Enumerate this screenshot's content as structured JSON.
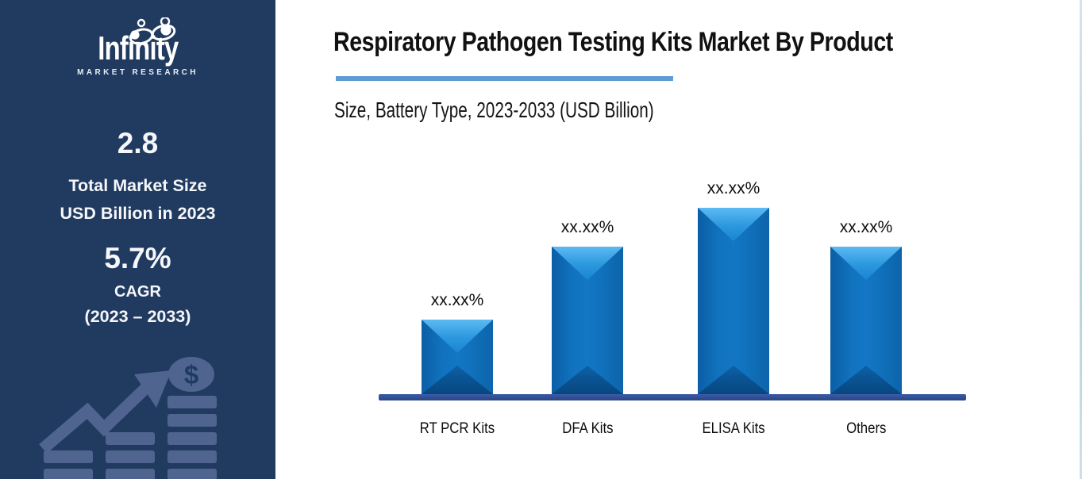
{
  "sidebar": {
    "logo": {
      "brand": "Infinity",
      "tagline": "MARKET RESEARCH"
    },
    "total_market_size": {
      "value": "2.8",
      "label_line1": "Total Market Size",
      "label_line2": "USD Billion in 2023"
    },
    "cagr": {
      "value": "5.7%",
      "label": "CAGR",
      "period": "(2023 – 2033)"
    },
    "colors": {
      "background": "#213A60",
      "graphic": "#4F6590"
    }
  },
  "header": {
    "title": "Respiratory Pathogen Testing Kits Market By Product",
    "subtitle": "Size, Battery Type, 2023-2033 (USD Billion)",
    "accent_color": "#5E9CD3"
  },
  "chart_data": {
    "type": "bar",
    "title": "Respiratory Pathogen Testing Kits Market By Product",
    "subtitle": "Size, Battery Type, 2023-2033 (USD Billion)",
    "categories": [
      "RT PCR Kits",
      "DFA Kits",
      "ELISA Kits",
      "Others"
    ],
    "data_labels": [
      "xx.xx%",
      "xx.xx%",
      "xx.xx%",
      "xx.xx%"
    ],
    "relative_heights": [
      0.4,
      0.79,
      1.0,
      0.79
    ],
    "bar_color": "#1173BE",
    "bar_bevel_highlight": "#5CBAF2",
    "baseline_color": "#32519B",
    "xlabel": "",
    "ylabel": "",
    "legend": false,
    "gridlines": false,
    "y_axis_visible": false
  }
}
